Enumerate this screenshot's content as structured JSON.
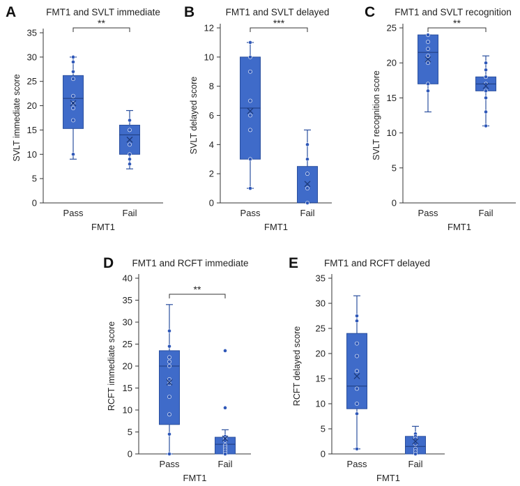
{
  "colors": {
    "box_fill": "#3f6bc9",
    "box_stroke": "#2a4f9e",
    "point_fill": "#2f58b8",
    "axis": "#333333"
  },
  "chart_data": [
    {
      "panel": "A",
      "type": "box",
      "title": "FMT1 and SVLT immediate",
      "ylabel": "SVLT immediate score",
      "xlabel": "FMT1",
      "categories": [
        "Pass",
        "Fail"
      ],
      "ylim": [
        0,
        35
      ],
      "yticks": [
        0,
        5,
        10,
        15,
        20,
        25,
        30,
        35
      ],
      "boxes": [
        {
          "name": "Pass",
          "min": 9,
          "q1": 15.3,
          "median": 21.5,
          "q3": 26.2,
          "max": 30,
          "mean": 20.5,
          "points": [
            30,
            29,
            27,
            25.5,
            22,
            20.5,
            19.5,
            17,
            10
          ]
        },
        {
          "name": "Fail",
          "min": 7,
          "q1": 10,
          "median": 14,
          "q3": 16,
          "max": 19,
          "mean": 13,
          "points": [
            17,
            15,
            12,
            10,
            9,
            8
          ]
        }
      ],
      "significance": "**"
    },
    {
      "panel": "B",
      "type": "box",
      "title": "FMT1 and SVLT delayed",
      "ylabel": "SVLT delayed score",
      "xlabel": "FMT1",
      "categories": [
        "Pass",
        "Fail"
      ],
      "ylim": [
        0,
        12
      ],
      "yticks": [
        0,
        2,
        4,
        6,
        8,
        10,
        12
      ],
      "boxes": [
        {
          "name": "Pass",
          "min": 1,
          "q1": 3,
          "median": 6.5,
          "q3": 10,
          "max": 11,
          "mean": 6.3,
          "points": [
            11,
            10,
            9,
            7,
            6,
            5,
            3,
            1
          ]
        },
        {
          "name": "Fail",
          "min": 0,
          "q1": 0,
          "median": 0,
          "q3": 2.5,
          "max": 5,
          "mean": 1.3,
          "points": [
            4,
            3,
            2,
            1,
            0
          ]
        }
      ],
      "significance": "***"
    },
    {
      "panel": "C",
      "type": "box",
      "title": "FMT1 and SVLT recognition",
      "ylabel": "SVLT recognition score",
      "xlabel": "FMT1",
      "categories": [
        "Pass",
        "Fail"
      ],
      "ylim": [
        0,
        25
      ],
      "yticks": [
        0,
        5,
        10,
        15,
        20,
        25
      ],
      "boxes": [
        {
          "name": "Pass",
          "min": 13,
          "q1": 17,
          "median": 21.5,
          "q3": 24,
          "max": 24,
          "mean": 20.5,
          "points": [
            24,
            23,
            22,
            21,
            20,
            17,
            16
          ]
        },
        {
          "name": "Fail",
          "min": 11,
          "q1": 16,
          "median": 17,
          "q3": 18,
          "max": 21,
          "mean": 16.7,
          "points": [
            20,
            19,
            18,
            17,
            16,
            15,
            13,
            11
          ]
        }
      ],
      "significance": "**"
    },
    {
      "panel": "D",
      "type": "box",
      "title": "FMT1 and RCFT immediate",
      "ylabel": "RCFT immediate score",
      "xlabel": "FMT1",
      "categories": [
        "Pass",
        "Fail"
      ],
      "ylim": [
        0,
        40
      ],
      "yticks": [
        0,
        5,
        10,
        15,
        20,
        25,
        30,
        35,
        40
      ],
      "boxes": [
        {
          "name": "Pass",
          "min": 0,
          "q1": 6.7,
          "median": 20,
          "q3": 23.5,
          "max": 34,
          "mean": 16.3,
          "points": [
            28,
            24.5,
            22,
            21,
            20,
            17,
            16,
            13,
            9,
            4.5,
            0
          ]
        },
        {
          "name": "Fail",
          "min": 0,
          "q1": 0,
          "median": 2.2,
          "q3": 3.8,
          "max": 5.5,
          "mean": 3.5,
          "points": [
            23.5,
            10.5,
            4,
            3.5,
            3,
            2,
            1.5,
            1,
            0.5,
            0
          ]
        }
      ],
      "significance": "**"
    },
    {
      "panel": "E",
      "type": "box",
      "title": "FMT1 and RCFT delayed",
      "ylabel": "RCFT delayed score",
      "xlabel": "FMT1",
      "categories": [
        "Pass",
        "Fail"
      ],
      "ylim": [
        0,
        35
      ],
      "yticks": [
        0,
        5,
        10,
        15,
        20,
        25,
        30,
        35
      ],
      "boxes": [
        {
          "name": "Pass",
          "min": 1,
          "q1": 9,
          "median": 13.5,
          "q3": 24,
          "max": 31.5,
          "mean": 15.5,
          "points": [
            27.5,
            26.5,
            22,
            19.5,
            16.5,
            13,
            10,
            8,
            1
          ]
        },
        {
          "name": "Fail",
          "min": 0,
          "q1": 0,
          "median": 1.5,
          "q3": 3.5,
          "max": 5.5,
          "mean": 2.5,
          "points": [
            4,
            3.5,
            3,
            2,
            1,
            0.5,
            0
          ]
        }
      ],
      "significance": ""
    }
  ]
}
